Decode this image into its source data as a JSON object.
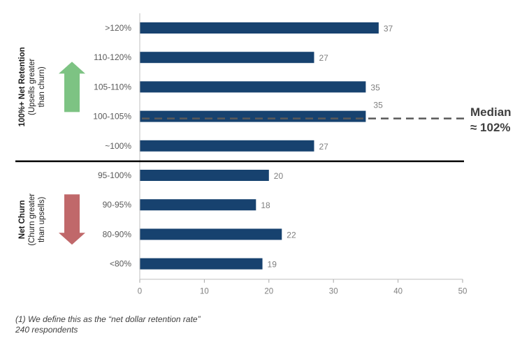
{
  "chart_data": {
    "type": "bar",
    "orientation": "horizontal",
    "categories": [
      ">120%",
      "110-120%",
      "105-110%",
      "100-105%",
      "~100%",
      "95-100%",
      "90-95%",
      "80-90%",
      "<80%"
    ],
    "values": [
      37,
      27,
      35,
      35,
      27,
      20,
      18,
      22,
      19
    ],
    "xlim": [
      0,
      50
    ],
    "xticks": [
      0,
      10,
      20,
      30,
      40,
      50
    ],
    "bar_color": "#17426f",
    "groups": [
      {
        "title": "100%+ Net Retention",
        "subtitle_lines": [
          "(Upsells greater",
          "than churn)"
        ],
        "arrow": "up",
        "arrow_color": "#7dc383",
        "categories": [
          ">120%",
          "110-120%",
          "105-110%",
          "100-105%",
          "~100%"
        ]
      },
      {
        "title": "Net Churn",
        "subtitle_lines": [
          "(Churn greater",
          "than upsells)"
        ],
        "arrow": "down",
        "arrow_color": "#c0686a",
        "categories": [
          "95-100%",
          "90-95%",
          "80-90%",
          "<80%"
        ]
      }
    ],
    "median": {
      "label_line1": "Median",
      "label_line2": "≈ 102%",
      "category": "100-105%",
      "line_color": "#595959"
    }
  },
  "footnote": {
    "line1": "(1) We define this as the “net dollar retention rate”",
    "line2": "240 respondents"
  }
}
